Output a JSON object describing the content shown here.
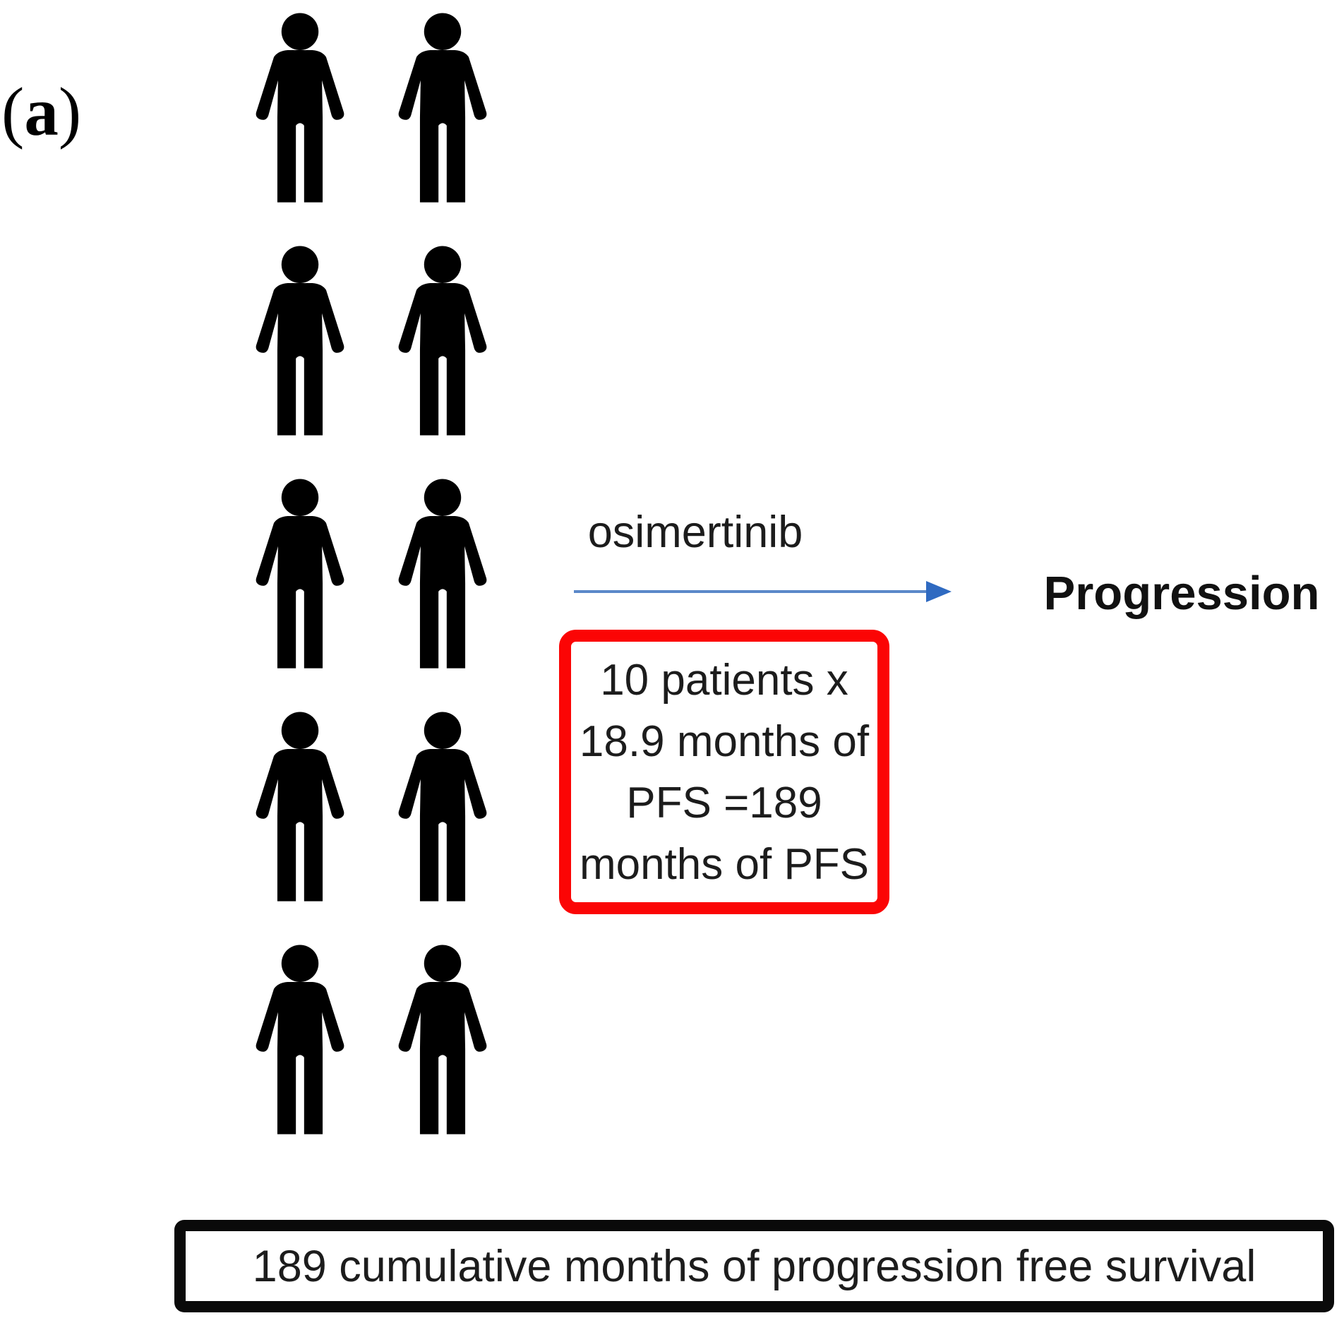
{
  "figure": {
    "panel_label_open": "(",
    "panel_label_letter": "a",
    "panel_label_close": ")"
  },
  "patients": {
    "count": 10,
    "rows": 5,
    "cols": 2,
    "icon": "person-icon"
  },
  "treatment": {
    "drug_label": "osimertinib",
    "outcome_label": "Progression"
  },
  "pfs_box": {
    "lines": [
      "10 patients x",
      "18.9 months of",
      "PFS =189",
      "months of PFS"
    ]
  },
  "summary_box": {
    "text": "189 cumulative months of progression free survival"
  },
  "colors": {
    "arrow_line": "#5b88c9",
    "arrow_head": "#2f6ac1",
    "pfs_box_border": "#fb0505",
    "summary_box_border": "#0a0a0a",
    "icon": "#000000"
  }
}
